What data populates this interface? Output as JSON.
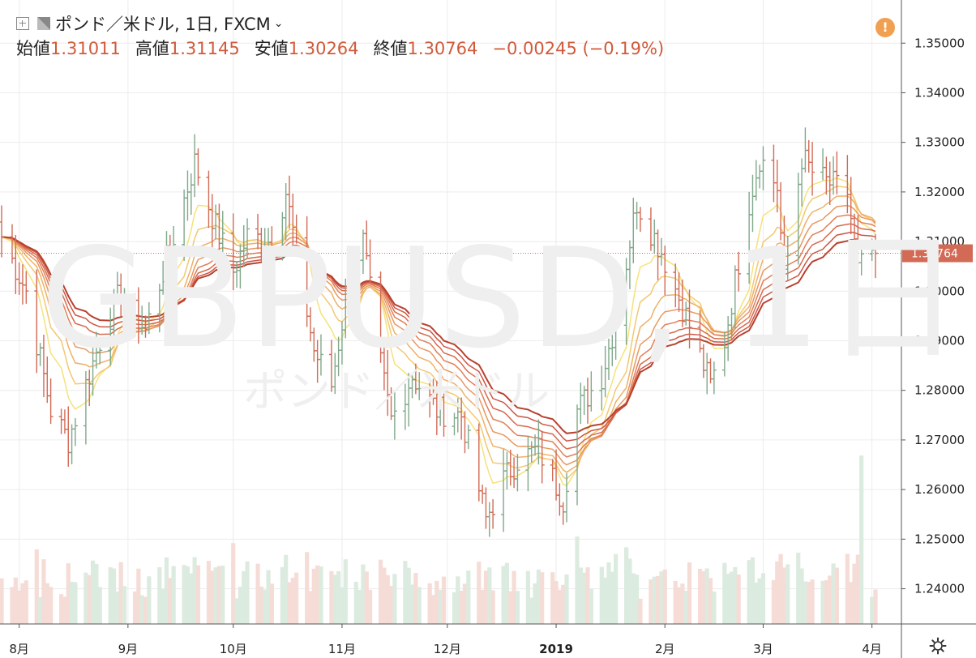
{
  "header": {
    "symbol_label": "ポンド／米ドル, 1日, FXCM",
    "open_label": "始値",
    "open_value": "1.31011",
    "high_label": "高値",
    "high_value": "1.31145",
    "low_label": "安値",
    "low_value": "1.30264",
    "close_label": "終値",
    "close_value": "1.30764",
    "change": "−0.00245 (−0.19%)"
  },
  "alert_icon": "!",
  "watermark": {
    "main": "GBPUSD, 1日",
    "sub": "ポンド／米ドル"
  },
  "colors": {
    "up": "#7fa88a",
    "down": "#d26a55",
    "price_line": "#d26a55",
    "ribbon": [
      "#f5e27a",
      "#f2c872",
      "#efb068",
      "#e89860",
      "#e07f58",
      "#d66a4e",
      "#cc5645",
      "#b8412e"
    ]
  },
  "chart_data": {
    "type": "ohlc",
    "title": "ポンド／米ドル, 1日, FXCM",
    "y_ticks": [
      "1.35000",
      "1.34000",
      "1.33000",
      "1.32000",
      "1.31000",
      "1.30000",
      "1.29000",
      "1.28000",
      "1.27000",
      "1.26000",
      "1.25000",
      "1.24000"
    ],
    "ylim": [
      1.2329,
      1.3587
    ],
    "x_ticks": [
      "8月",
      "9月",
      "10月",
      "11月",
      "12月",
      "2019",
      "2月",
      "3月",
      "4月"
    ],
    "last_price": "1.30764",
    "close_path": [
      [
        "2018-07-27",
        1.311
      ],
      [
        "2018-08-03",
        1.3
      ],
      [
        "2018-08-10",
        1.276
      ],
      [
        "2018-08-15",
        1.27
      ],
      [
        "2018-08-24",
        1.29
      ],
      [
        "2018-08-30",
        1.3
      ],
      [
        "2018-09-06",
        1.292
      ],
      [
        "2018-09-14",
        1.311
      ],
      [
        "2018-09-20",
        1.326
      ],
      [
        "2018-09-26",
        1.313
      ],
      [
        "2018-10-01",
        1.304
      ],
      [
        "2018-10-05",
        1.311
      ],
      [
        "2018-10-12",
        1.31
      ],
      [
        "2018-10-16",
        1.32
      ],
      [
        "2018-10-19",
        1.308
      ],
      [
        "2018-10-24",
        1.288
      ],
      [
        "2018-10-29",
        1.281
      ],
      [
        "2018-11-02",
        1.298
      ],
      [
        "2018-11-07",
        1.31
      ],
      [
        "2018-11-12",
        1.285
      ],
      [
        "2018-11-15",
        1.274
      ],
      [
        "2018-11-21",
        1.283
      ],
      [
        "2018-11-28",
        1.276
      ],
      [
        "2018-12-05",
        1.275
      ],
      [
        "2018-12-12",
        1.254
      ],
      [
        "2018-12-17",
        1.262
      ],
      [
        "2018-12-21",
        1.266
      ],
      [
        "2018-12-27",
        1.268
      ],
      [
        "2019-01-03",
        1.258
      ],
      [
        "2019-01-07",
        1.276
      ],
      [
        "2019-01-14",
        1.283
      ],
      [
        "2019-01-18",
        1.294
      ],
      [
        "2019-01-24",
        1.318
      ],
      [
        "2019-01-31",
        1.308
      ],
      [
        "2019-02-07",
        1.295
      ],
      [
        "2019-02-14",
        1.281
      ],
      [
        "2019-02-18",
        1.29
      ],
      [
        "2019-02-25",
        1.318
      ],
      [
        "2019-02-28",
        1.327
      ],
      [
        "2019-03-05",
        1.321
      ],
      [
        "2019-03-07",
        1.302
      ],
      [
        "2019-03-12",
        1.327
      ],
      [
        "2019-03-15",
        1.324
      ],
      [
        "2019-03-19",
        1.322
      ],
      [
        "2019-03-25",
        1.32
      ],
      [
        "2019-03-28",
        1.304
      ],
      [
        "2019-04-02",
        1.309
      ]
    ],
    "volume_spike": "2019-03-29",
    "volume_spike_level": 0.27,
    "volume_base_level": 0.055,
    "ribbon_periods": [
      5,
      8,
      11,
      14,
      17,
      20,
      23,
      26
    ]
  }
}
